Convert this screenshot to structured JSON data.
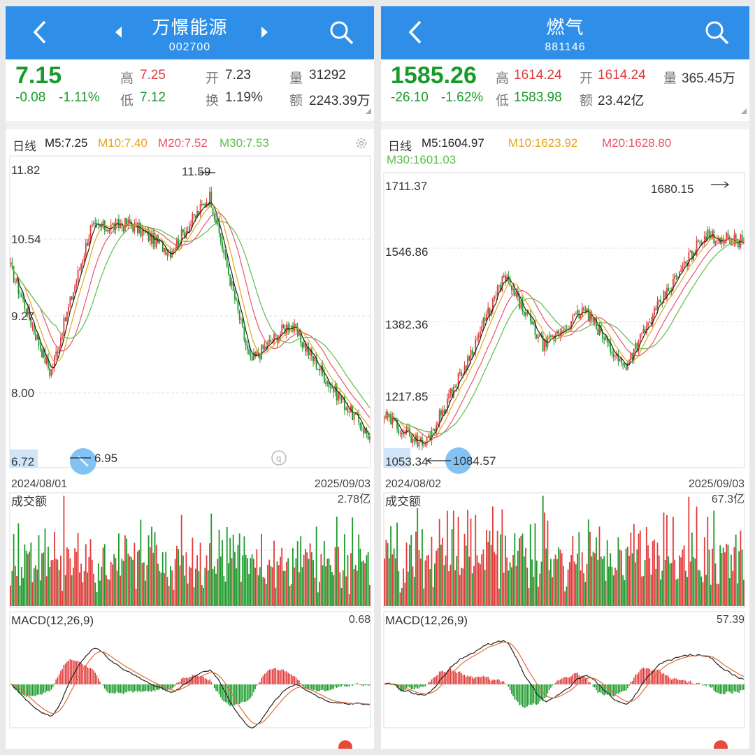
{
  "left": {
    "title": "万憬能源",
    "code": "002700",
    "price": "7.15",
    "change": "-0.08",
    "pct": "-1.11%",
    "high_l": "高",
    "high": "7.25",
    "low_l": "低",
    "low": "7.12",
    "open_l": "开",
    "open": "7.23",
    "turn_l": "换",
    "turn": "1.19%",
    "vol_l": "量",
    "vol": "31292",
    "amt_l": "额",
    "amt": "2243.39万",
    "ma_label": "日线",
    "m5": "M5:7.25",
    "m10": "M10:7.40",
    "m20": "M20:7.52",
    "m30": "M30:7.53",
    "yticks": [
      "11.82",
      "10.54",
      "9.27",
      "8.00",
      "6.72"
    ],
    "max_label": "11.59",
    "min_label": "6.95",
    "date_start": "2024/08/01",
    "date_end": "2025/09/03",
    "vol_title": "成交额",
    "vol_max": "2.78亿",
    "macd_title": "MACD(12,26,9)",
    "macd_max": "0.68"
  },
  "right": {
    "title": "燃气",
    "code": "881146",
    "price": "1585.26",
    "change": "-26.10",
    "pct": "-1.62%",
    "high_l": "高",
    "high": "1614.24",
    "low_l": "低",
    "low": "1583.98",
    "open_l": "开",
    "open": "1614.24",
    "amt_l": "额",
    "amt": "23.42亿",
    "vol_l": "量",
    "vol": "365.45万",
    "ma_label": "日线",
    "m5": "M5:1604.97",
    "m10": "M10:1623.92",
    "m20": "M20:1628.80",
    "m30": "M30:1601.03",
    "yticks": [
      "1711.37",
      "1546.86",
      "1382.36",
      "1217.85",
      "1053.34"
    ],
    "max_label": "1680.15",
    "min_label": "1084.57",
    "date_start": "2024/08/02",
    "date_end": "2025/09/03",
    "vol_title": "成交额",
    "vol_max": "67.3亿",
    "macd_title": "MACD(12,26,9)",
    "macd_max": "57.39"
  },
  "colors": {
    "up": "#e23a3a",
    "down": "#1a9a2a",
    "m5": "#222222",
    "m10": "#e8a317",
    "m20": "#e8556b",
    "m30": "#5cbf4a",
    "nav": "#2f8fe8"
  },
  "chart_data": [
    {
      "type": "candlestick",
      "symbol": "002700",
      "x": [
        "2024/08/01",
        "2024/09/15",
        "2024/10/08",
        "2024/11/15",
        "2025/01/10",
        "2025/03/05",
        "2025/04/07",
        "2025/06/10",
        "2025/08/01",
        "2025/09/03"
      ],
      "close": [
        10.2,
        8.3,
        10.9,
        11.0,
        10.5,
        11.5,
        8.5,
        9.2,
        8.1,
        7.15
      ],
      "ylim": [
        6.72,
        11.82
      ],
      "high_marker": 11.59,
      "low_marker": 6.95
    },
    {
      "type": "candlestick",
      "symbol": "881146",
      "x": [
        "2024/08/02",
        "2024/09/15",
        "2024/10/08",
        "2024/11/20",
        "2025/01/10",
        "2025/03/10",
        "2025/04/08",
        "2025/06/10",
        "2025/08/10",
        "2025/09/03"
      ],
      "close": [
        1160,
        1090,
        1280,
        1500,
        1330,
        1420,
        1280,
        1450,
        1600,
        1585.26
      ],
      "ylim": [
        1053.34,
        1711.37
      ],
      "high_marker": 1680.15,
      "low_marker": 1084.57
    }
  ]
}
